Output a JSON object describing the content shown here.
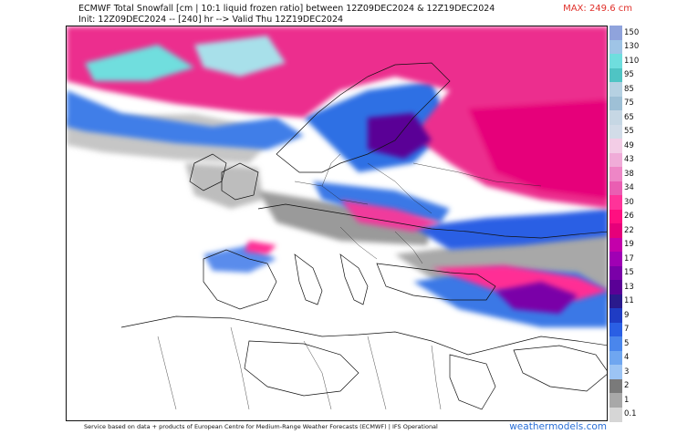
{
  "header": {
    "title_line1": "ECMWF Total Snowfall [cm | 10:1 liquid frozen ratio] between 12Z09DEC2024 & 12Z19DEC2024",
    "title_line2": "Init: 12Z09DEC2024 -- [240] hr --> Valid Thu 12Z19DEC2024",
    "max_label": "MAX: 249.6 cm"
  },
  "legend": {
    "levels": [
      {
        "label": "150",
        "color": "#8fa3dc"
      },
      {
        "label": "130",
        "color": "#9fc4e6"
      },
      {
        "label": "110",
        "color": "#6fdede"
      },
      {
        "label": "95",
        "color": "#4fc4c4"
      },
      {
        "label": "85",
        "color": "#b6d1e2"
      },
      {
        "label": "75",
        "color": "#9ec0d6"
      },
      {
        "label": "65",
        "color": "#c6d7e4"
      },
      {
        "label": "55",
        "color": "#d2dce8"
      },
      {
        "label": "49",
        "color": "#f3cde6"
      },
      {
        "label": "43",
        "color": "#f0acd8"
      },
      {
        "label": "38",
        "color": "#ee86c6"
      },
      {
        "label": "34",
        "color": "#ea5eb2"
      },
      {
        "label": "30",
        "color": "#ff3399"
      },
      {
        "label": "26",
        "color": "#ff0f80"
      },
      {
        "label": "22",
        "color": "#e6007a"
      },
      {
        "label": "19",
        "color": "#c400aa"
      },
      {
        "label": "17",
        "color": "#a000b4"
      },
      {
        "label": "15",
        "color": "#7a00a8"
      },
      {
        "label": "13",
        "color": "#5a0096"
      },
      {
        "label": "11",
        "color": "#2a1a8c"
      },
      {
        "label": "9",
        "color": "#1f3cc4"
      },
      {
        "label": "7",
        "color": "#2a5fe4"
      },
      {
        "label": "5",
        "color": "#4a86ec"
      },
      {
        "label": "4",
        "color": "#6fa6f0"
      },
      {
        "label": "3",
        "color": "#9cc4f4"
      },
      {
        "label": "2",
        "color": "#7a7a7a"
      },
      {
        "label": "1",
        "color": "#a8a8a8"
      },
      {
        "label": "0.1",
        "color": "#d6d6d6"
      }
    ]
  },
  "footer": {
    "credit": "Service based on data + products of European Centre for Medium-Range Weather Forecasts (ECMWF) | IFS Operational",
    "brand": "weathermodels.com"
  }
}
